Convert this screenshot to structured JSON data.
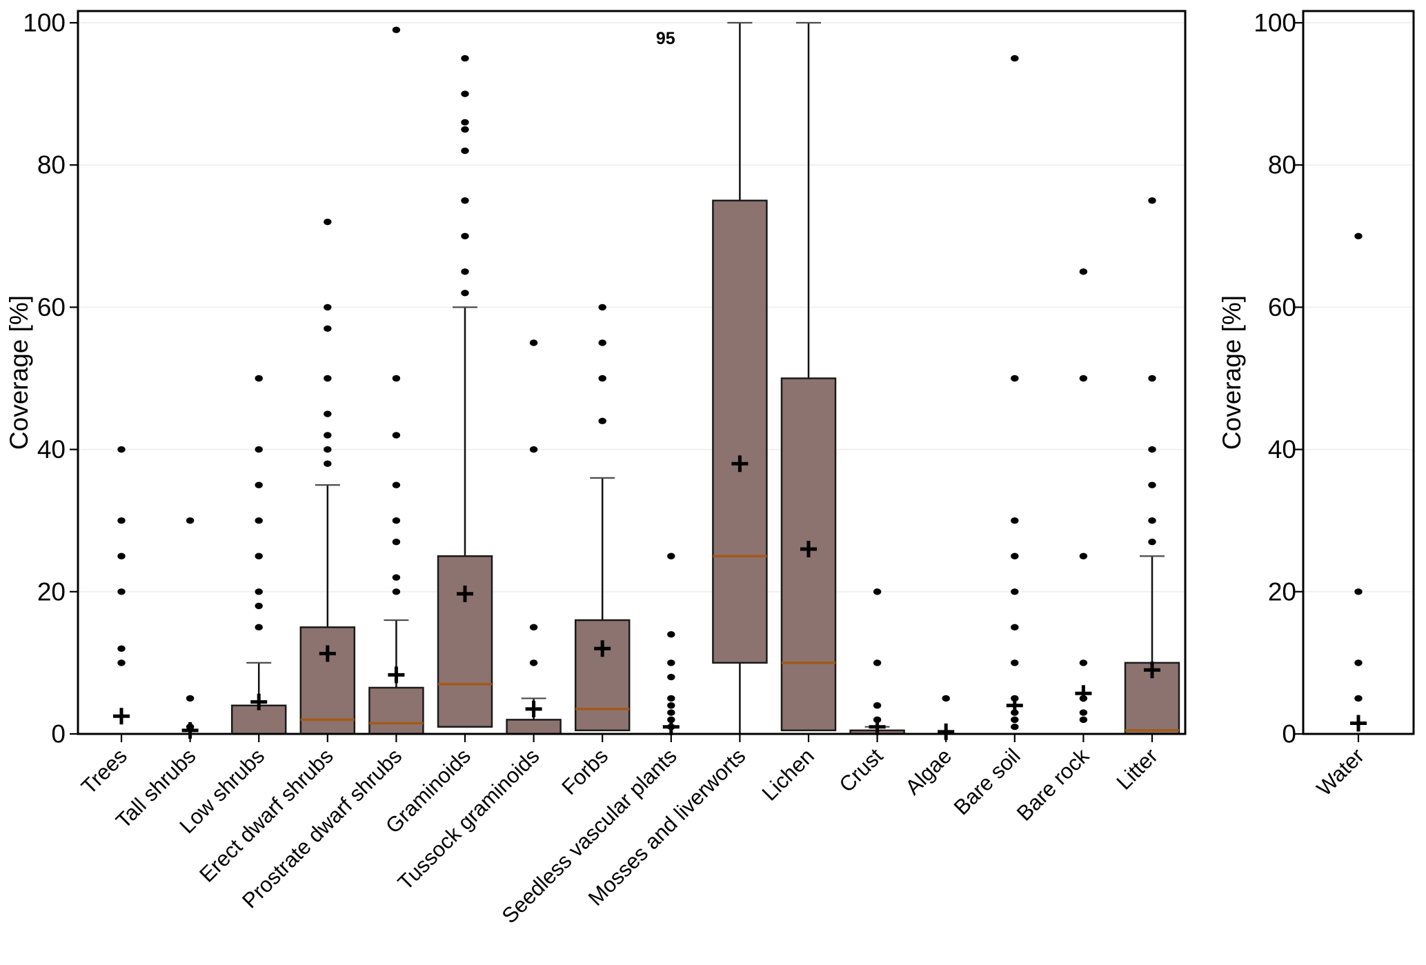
{
  "figure": {
    "description": "Boxplots of coverage percentage per vegetation / surface class, with a separate panel for Water",
    "background_color": "#ffffff"
  },
  "chart_data": {
    "type": "boxplot",
    "ylabel": "Coverage [%]",
    "ylim": [
      0,
      100
    ],
    "yticks": [
      0,
      20,
      40,
      60,
      80,
      100
    ],
    "grid": "horizontal-light",
    "style": {
      "box_fill": "#8c7370",
      "box_stroke": "#1a1a1a",
      "median_color": "#a35a17",
      "whisker_color": "#111111",
      "cap_color": "#4a4a4a",
      "outlier_color": "#000000",
      "mean_marker": "plus",
      "mean_color": "#000000",
      "gridline_color": "#f0f0f0"
    },
    "panels": [
      {
        "name": "main",
        "ylabel": "Coverage [%]",
        "categories": [
          {
            "label": "Trees",
            "q1": 0,
            "median": 0,
            "q3": 0,
            "whisker_low": 0,
            "whisker_high": 0,
            "mean": 2.5,
            "outliers": [
              10,
              12,
              20,
              25,
              30,
              40
            ]
          },
          {
            "label": "Tall shrubs",
            "q1": 0,
            "median": 0,
            "q3": 0,
            "whisker_low": 0,
            "whisker_high": 0,
            "mean": 0.5,
            "outliers": [
              1,
              5,
              30
            ]
          },
          {
            "label": "Low shrubs",
            "q1": 0,
            "median": 0,
            "q3": 4,
            "whisker_low": 0,
            "whisker_high": 10,
            "mean": 4.5,
            "outliers": [
              15,
              18,
              20,
              25,
              30,
              35,
              40,
              50
            ]
          },
          {
            "label": "Erect dwarf shrubs",
            "q1": 0,
            "median": 2,
            "q3": 15,
            "whisker_low": 0,
            "whisker_high": 35,
            "mean": 11.3,
            "outliers": [
              38,
              40,
              42,
              45,
              50,
              57,
              60,
              72
            ]
          },
          {
            "label": "Prostrate dwarf shrubs",
            "q1": 0,
            "median": 1.5,
            "q3": 6.5,
            "whisker_low": 0,
            "whisker_high": 16,
            "mean": 8.3,
            "outliers": [
              20,
              22,
              27,
              30,
              35,
              42,
              50,
              99
            ]
          },
          {
            "label": "Graminoids",
            "q1": 1,
            "median": 7,
            "q3": 25,
            "whisker_low": 1,
            "whisker_high": 60,
            "mean": 19.7,
            "outliers": [
              62,
              65,
              70,
              75,
              82,
              85,
              86,
              90,
              95
            ]
          },
          {
            "label": "Tussock graminoids",
            "q1": 0,
            "median": 0,
            "q3": 2,
            "whisker_low": 0,
            "whisker_high": 5,
            "mean": 3.5,
            "outliers": [
              10,
              15,
              40,
              55
            ]
          },
          {
            "label": "Forbs",
            "q1": 0.5,
            "median": 3.5,
            "q3": 16,
            "whisker_low": 0.5,
            "whisker_high": 36,
            "mean": 12,
            "outliers": [
              44,
              50,
              55,
              60
            ]
          },
          {
            "label": "Seedless vascular plants",
            "q1": 0,
            "median": 0,
            "q3": 0,
            "whisker_low": 0,
            "whisker_high": 0,
            "mean": 1,
            "outliers": [
              1,
              2,
              3,
              4,
              5,
              8,
              10,
              14,
              25
            ]
          },
          {
            "label": "Mosses and liverworts",
            "q1": 10,
            "median": 25,
            "q3": 75,
            "whisker_low": 0,
            "whisker_high": 100,
            "mean": 38,
            "outliers": []
          },
          {
            "label": "Lichen",
            "q1": 0.5,
            "median": 10,
            "q3": 50,
            "whisker_low": 0.5,
            "whisker_high": 100,
            "mean": 26,
            "outliers": []
          },
          {
            "label": "Crust",
            "q1": 0,
            "median": 0,
            "q3": 0.5,
            "whisker_low": 0,
            "whisker_high": 1,
            "mean": 1,
            "outliers": [
              2,
              4,
              10,
              20
            ]
          },
          {
            "label": "Algae",
            "q1": 0,
            "median": 0,
            "q3": 0,
            "whisker_low": 0,
            "whisker_high": 0,
            "mean": 0.3,
            "outliers": [
              5
            ]
          },
          {
            "label": "Bare soil",
            "q1": 0,
            "median": 0,
            "q3": 0,
            "whisker_low": 0,
            "whisker_high": 0,
            "mean": 4,
            "outliers": [
              1,
              2,
              3,
              5,
              10,
              15,
              20,
              25,
              30,
              50,
              95
            ]
          },
          {
            "label": "Bare rock",
            "q1": 0,
            "median": 0,
            "q3": 0,
            "whisker_low": 0,
            "whisker_high": 0,
            "mean": 5.7,
            "outliers": [
              2,
              3,
              5,
              10,
              25,
              50,
              65
            ]
          },
          {
            "label": "Litter",
            "q1": 0,
            "median": 0.5,
            "q3": 10,
            "whisker_low": 0,
            "whisker_high": 25,
            "mean": 9,
            "outliers": [
              27,
              30,
              35,
              40,
              50,
              75
            ]
          }
        ],
        "annotation": {
          "text": "95",
          "category_index": 8,
          "value": 97,
          "dx": -8
        }
      },
      {
        "name": "water",
        "ylabel": "Coverage [%]",
        "categories": [
          {
            "label": "Water",
            "q1": 0,
            "median": 0,
            "q3": 0,
            "whisker_low": 0,
            "whisker_high": 0,
            "mean": 1.5,
            "outliers": [
              5,
              10,
              20,
              70
            ]
          }
        ]
      }
    ]
  }
}
